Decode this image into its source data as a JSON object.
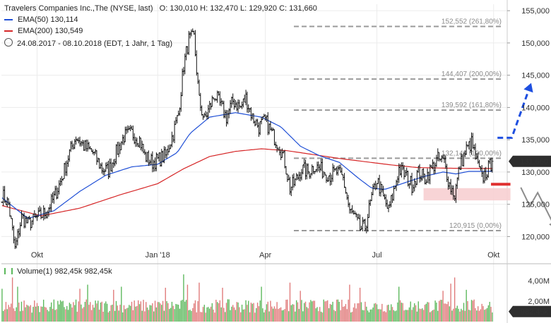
{
  "header": {
    "title": "Travelers Companies Inc.,The (NYSE, last)",
    "ohlc": "O: 130,010  H: 132,470  L: 129,920  C: 131,660",
    "ema50": "EMA(50)  130,114",
    "ema200": "EMA(200)  130,549",
    "range": "24.08.2017 - 08.10.2018  (EDT, 1 Jahr, 1 Tag)",
    "volume": "Volume(1)  982,45k  982,45k"
  },
  "colors": {
    "price": "#111111",
    "ema50": "#1f4fd6",
    "ema200": "#d62728",
    "projection": "#1e4fe0",
    "downarrow": "#8c8c8c",
    "vol_up": "#5cb85c",
    "vol_down": "#e07a7a",
    "last_badge": "#2e2e2e"
  },
  "chart_data": {
    "type": "line",
    "x_tick_labels": [
      "Okt",
      "Jan '18",
      "Apr",
      "Jul",
      "Okt"
    ],
    "x_ticks_idx": [
      27,
      120,
      203,
      289,
      379
    ],
    "ylim": [
      116,
      156
    ],
    "y_ticks": [
      120,
      125,
      130,
      135,
      140,
      145,
      150,
      155
    ],
    "y_tick_labels": [
      "120,000",
      "125,000",
      "130,000",
      "135,000",
      "140,000",
      "145,000",
      "150,000",
      "155,000"
    ],
    "last_value_label": "131,660",
    "anchors": [
      [
        0,
        126.5
      ],
      [
        5,
        125
      ],
      [
        10,
        118
      ],
      [
        15,
        123
      ],
      [
        20,
        122
      ],
      [
        28,
        123
      ],
      [
        34,
        123.8
      ],
      [
        40,
        126
      ],
      [
        46,
        129
      ],
      [
        52,
        133
      ],
      [
        57,
        135.5
      ],
      [
        63,
        134
      ],
      [
        70,
        133
      ],
      [
        77,
        130.5
      ],
      [
        82,
        130.2
      ],
      [
        88,
        133
      ],
      [
        94,
        135.5
      ],
      [
        100,
        136
      ],
      [
        106,
        135
      ],
      [
        110,
        132.5
      ],
      [
        116,
        131.5
      ],
      [
        121,
        132
      ],
      [
        126,
        132.5
      ],
      [
        132,
        136
      ],
      [
        136,
        139
      ],
      [
        140,
        146.5
      ],
      [
        144,
        150.5
      ],
      [
        148,
        150.8
      ],
      [
        152,
        141
      ],
      [
        156,
        138
      ],
      [
        160,
        140
      ],
      [
        164,
        142
      ],
      [
        168,
        140.5
      ],
      [
        173,
        138.5
      ],
      [
        178,
        141
      ],
      [
        184,
        140
      ],
      [
        188,
        141.5
      ],
      [
        193,
        138.5
      ],
      [
        198,
        137
      ],
      [
        203,
        138
      ],
      [
        208,
        136
      ],
      [
        214,
        134
      ],
      [
        218,
        131.5
      ],
      [
        222,
        127.5
      ],
      [
        226,
        128.5
      ],
      [
        231,
        130.5
      ],
      [
        236,
        130
      ],
      [
        241,
        131
      ],
      [
        247,
        130.2
      ],
      [
        253,
        129.5
      ],
      [
        258,
        130
      ],
      [
        263,
        129
      ],
      [
        268,
        124
      ],
      [
        272,
        123
      ],
      [
        276,
        121.2
      ],
      [
        280,
        121.5
      ],
      [
        285,
        126
      ],
      [
        289,
        128.8
      ],
      [
        294,
        126
      ],
      [
        298,
        124
      ],
      [
        302,
        127
      ],
      [
        306,
        130.5
      ],
      [
        311,
        129.5
      ],
      [
        316,
        128
      ],
      [
        321,
        130
      ],
      [
        326,
        129
      ],
      [
        331,
        130.5
      ],
      [
        336,
        132
      ],
      [
        341,
        131.5
      ],
      [
        345,
        128
      ],
      [
        349,
        126.5
      ],
      [
        353,
        131
      ],
      [
        358,
        133.5
      ],
      [
        362,
        134.5
      ],
      [
        366,
        131.5
      ],
      [
        370,
        129
      ],
      [
        374,
        130.2
      ],
      [
        378,
        131.66
      ]
    ],
    "close_spread": 1.15,
    "ema50": [
      [
        0,
        126
      ],
      [
        20,
        122.8
      ],
      [
        40,
        124
      ],
      [
        60,
        127
      ],
      [
        80,
        129.5
      ],
      [
        100,
        130.8
      ],
      [
        120,
        131.2
      ],
      [
        135,
        133
      ],
      [
        145,
        136
      ],
      [
        160,
        138.5
      ],
      [
        180,
        139.2
      ],
      [
        200,
        138.5
      ],
      [
        215,
        137
      ],
      [
        230,
        134
      ],
      [
        245,
        132.5
      ],
      [
        260,
        131.5
      ],
      [
        275,
        129
      ],
      [
        285,
        127.5
      ],
      [
        295,
        127.3
      ],
      [
        310,
        128.3
      ],
      [
        325,
        129.3
      ],
      [
        340,
        130
      ],
      [
        350,
        129.7
      ],
      [
        360,
        130.1
      ],
      [
        370,
        130.1
      ],
      [
        378,
        130.114
      ]
    ],
    "ema200": [
      [
        0,
        124.8
      ],
      [
        30,
        123.2
      ],
      [
        60,
        124.4
      ],
      [
        90,
        126.4
      ],
      [
        120,
        128.2
      ],
      [
        140,
        130.5
      ],
      [
        160,
        132.4
      ],
      [
        180,
        133.2
      ],
      [
        200,
        133.6
      ],
      [
        220,
        133.3
      ],
      [
        240,
        132.7
      ],
      [
        260,
        132.1
      ],
      [
        280,
        131.6
      ],
      [
        300,
        131.1
      ],
      [
        320,
        130.7
      ],
      [
        340,
        130.6
      ],
      [
        360,
        130.55
      ],
      [
        378,
        130.549
      ]
    ],
    "fib_levels": [
      {
        "value": 152.552,
        "label": "152,552  (261,80%)"
      },
      {
        "value": 144.407,
        "label": "144,407  (200,00%)"
      },
      {
        "value": 139.592,
        "label": "139,592  (161,80%)"
      },
      {
        "value": 132.14,
        "label": "132,140  (100,00%)"
      },
      {
        "value": 120.915,
        "label": "120,915  (0,00%)"
      }
    ],
    "support_zone": [
      125.6,
      127.5
    ],
    "support_line": 128.1,
    "projection_up": [
      [
        382,
        135.3
      ],
      [
        393,
        135.3
      ],
      [
        408,
        143.8
      ]
    ],
    "projection_down": [
      [
        400,
        127.6
      ],
      [
        407,
        124.7
      ],
      [
        413,
        126.8
      ],
      [
        427,
        121.2
      ]
    ],
    "volume": {
      "ylim": [
        0,
        5.5
      ],
      "y_ticks": [
        2,
        4
      ],
      "y_tick_labels": [
        "2,00M",
        "4,00M"
      ],
      "last_label": "982,45k",
      "base": 1.45,
      "spikes": [
        [
          0,
          3.2
        ],
        [
          8,
          4.3
        ],
        [
          12,
          3.4
        ],
        [
          60,
          3.2
        ],
        [
          66,
          3.6
        ],
        [
          86,
          3.1
        ],
        [
          92,
          3.4
        ],
        [
          126,
          3.3
        ],
        [
          140,
          4.6
        ],
        [
          143,
          3.6
        ],
        [
          152,
          3.8
        ],
        [
          170,
          3.3
        ],
        [
          200,
          3.4
        ],
        [
          222,
          3.8
        ],
        [
          230,
          3.0
        ],
        [
          268,
          3.6
        ],
        [
          276,
          3.3
        ],
        [
          306,
          3.4
        ],
        [
          340,
          3.0
        ],
        [
          346,
          3.7
        ],
        [
          349,
          4.3
        ],
        [
          358,
          3.1
        ]
      ]
    }
  }
}
